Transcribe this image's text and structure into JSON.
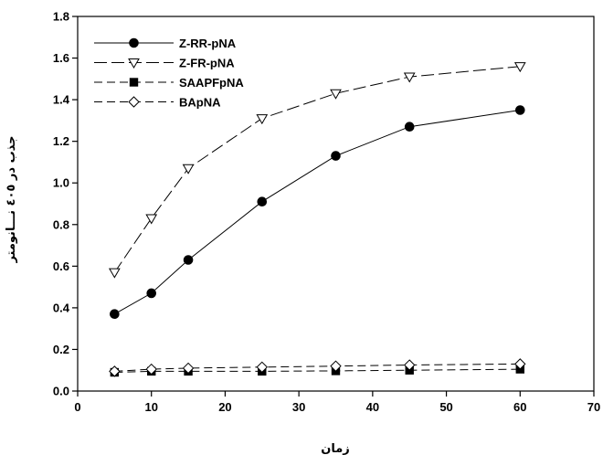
{
  "chart_data": {
    "type": "line",
    "title": "",
    "xlabel": "زمان",
    "ylabel": "جذب در ٤٠٥ نـــانومتر",
    "xlim": [
      0,
      70
    ],
    "ylim": [
      0.0,
      1.8
    ],
    "xticks": [
      "0",
      "10",
      "20",
      "30",
      "40",
      "50",
      "60",
      "70"
    ],
    "yticks": [
      "0.0",
      "0.2",
      "0.4",
      "0.6",
      "0.8",
      "1.0",
      "1.2",
      "1.4",
      "1.6",
      "1.8"
    ],
    "grid": false,
    "legend_position": "top-left",
    "x": [
      5,
      10,
      15,
      25,
      35,
      45,
      60
    ],
    "series": [
      {
        "name": "Z-RR-pNA",
        "marker": "filled-circle",
        "line": "solid",
        "values": [
          0.37,
          0.47,
          0.63,
          0.91,
          1.13,
          1.27,
          1.35
        ]
      },
      {
        "name": "Z-FR-pNA",
        "marker": "open-triangle-down",
        "line": "long-dash",
        "values": [
          0.57,
          0.83,
          1.07,
          1.31,
          1.43,
          1.51,
          1.56
        ]
      },
      {
        "name": "SAAPFpNA",
        "marker": "filled-square",
        "line": "dash",
        "values": [
          0.09,
          0.095,
          0.095,
          0.095,
          0.097,
          0.1,
          0.105
        ]
      },
      {
        "name": "BApNA",
        "marker": "open-diamond",
        "line": "dash",
        "values": [
          0.095,
          0.105,
          0.11,
          0.115,
          0.12,
          0.125,
          0.13
        ]
      }
    ]
  }
}
